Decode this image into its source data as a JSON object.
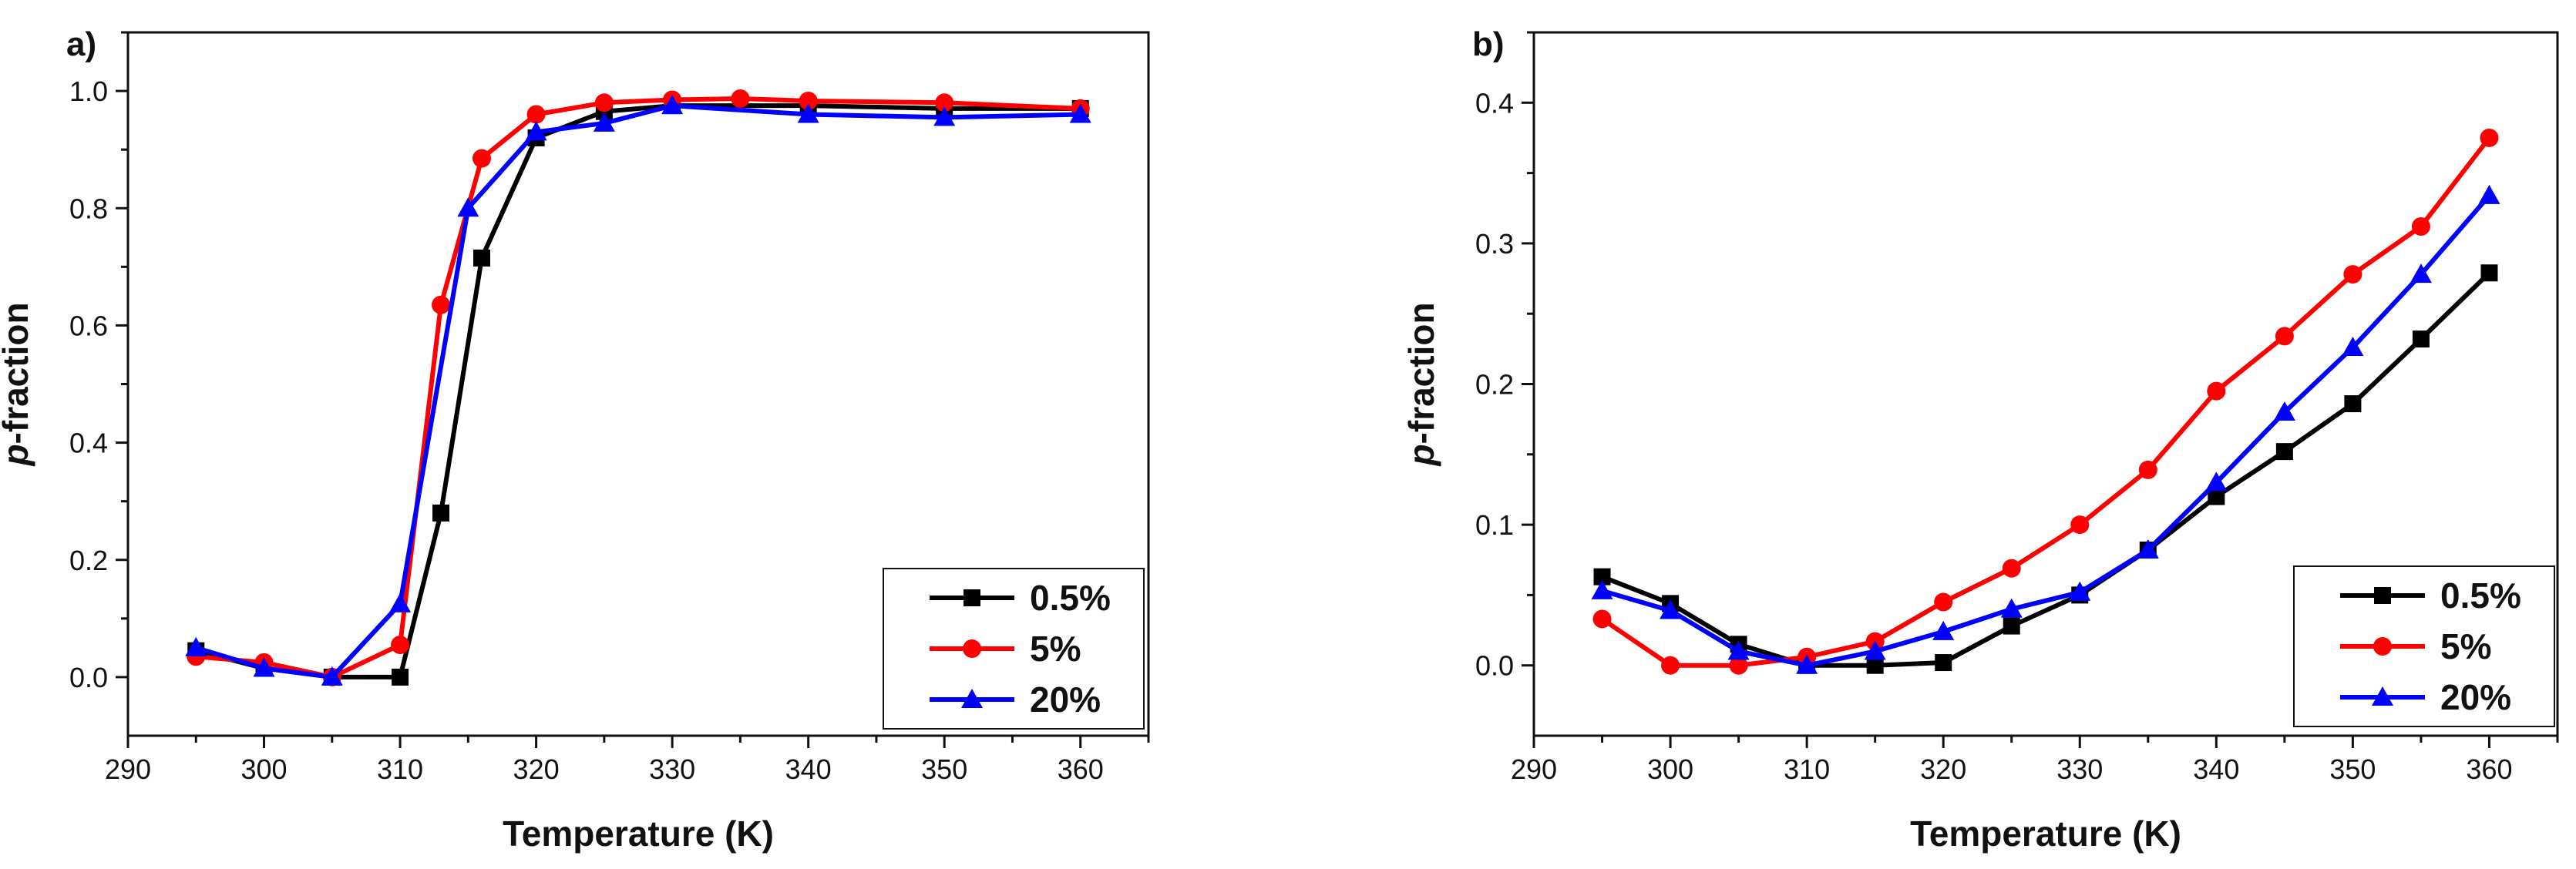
{
  "chart_data": [
    {
      "type": "line",
      "panel_label": "a)",
      "title": "",
      "xlabel": "Temperature (K)",
      "ylabel_italic": "p",
      "ylabel_rest": "-fraction",
      "xlim": [
        290,
        365
      ],
      "ylim": [
        -0.1,
        1.1
      ],
      "xticks": [
        290,
        300,
        310,
        320,
        330,
        340,
        350,
        360
      ],
      "xtick_labels": [
        "290",
        "300",
        "310",
        "320",
        "330",
        "340",
        "350",
        "360"
      ],
      "yticks": [
        0.0,
        0.2,
        0.4,
        0.6,
        0.8,
        1.0
      ],
      "ytick_labels": [
        "0.0",
        "0.2",
        "0.4",
        "0.6",
        "0.8",
        "1.0"
      ],
      "legend_position": "bottom-right",
      "series": [
        {
          "name": "0.5%",
          "color": "#000000",
          "marker": "square",
          "x": [
            295,
            300,
            305,
            310,
            313,
            316,
            320,
            325,
            330,
            340,
            350,
            360
          ],
          "y": [
            0.045,
            0.015,
            0.0,
            0.0,
            0.28,
            0.715,
            0.92,
            0.965,
            0.975,
            0.975,
            0.97,
            0.97
          ]
        },
        {
          "name": "5%",
          "color": "#ff0000",
          "marker": "circle",
          "x": [
            295,
            300,
            305,
            310,
            313,
            316,
            320,
            325,
            330,
            335,
            340,
            350,
            360
          ],
          "y": [
            0.035,
            0.025,
            0.0,
            0.055,
            0.635,
            0.885,
            0.96,
            0.98,
            0.985,
            0.987,
            0.983,
            0.98,
            0.97
          ]
        },
        {
          "name": "20%",
          "color": "#0000ff",
          "marker": "triangle",
          "x": [
            295,
            300,
            305,
            310,
            315,
            320,
            325,
            330,
            340,
            350,
            360
          ],
          "y": [
            0.05,
            0.015,
            0.0,
            0.125,
            0.8,
            0.93,
            0.945,
            0.975,
            0.96,
            0.955,
            0.96
          ]
        }
      ]
    },
    {
      "type": "line",
      "panel_label": "b)",
      "title": "",
      "xlabel": "Temperature (K)",
      "ylabel_italic": "p",
      "ylabel_rest": "-fraction",
      "xlim": [
        290,
        365
      ],
      "ylim": [
        -0.05,
        0.45
      ],
      "xticks": [
        290,
        300,
        310,
        320,
        330,
        340,
        350,
        360
      ],
      "xtick_labels": [
        "290",
        "300",
        "310",
        "320",
        "330",
        "340",
        "350",
        "360"
      ],
      "yticks": [
        0.0,
        0.1,
        0.2,
        0.3,
        0.4
      ],
      "ytick_labels": [
        "0.0",
        "0.1",
        "0.2",
        "0.3",
        "0.4"
      ],
      "legend_position": "bottom-right",
      "series": [
        {
          "name": "0.5%",
          "color": "#000000",
          "marker": "square",
          "x": [
            295,
            300,
            305,
            310,
            315,
            320,
            325,
            330,
            335,
            340,
            345,
            350,
            355,
            360
          ],
          "y": [
            0.063,
            0.044,
            0.015,
            0.0,
            0.0,
            0.002,
            0.028,
            0.05,
            0.082,
            0.12,
            0.152,
            0.186,
            0.232,
            0.279
          ]
        },
        {
          "name": "5%",
          "color": "#ff0000",
          "marker": "circle",
          "x": [
            295,
            300,
            305,
            310,
            315,
            320,
            325,
            330,
            335,
            340,
            345,
            350,
            355,
            360
          ],
          "y": [
            0.033,
            0.0,
            0.0,
            0.006,
            0.017,
            0.045,
            0.069,
            0.1,
            0.139,
            0.195,
            0.234,
            0.278,
            0.312,
            0.375
          ]
        },
        {
          "name": "20%",
          "color": "#0000ff",
          "marker": "triangle",
          "x": [
            295,
            300,
            305,
            310,
            315,
            320,
            325,
            330,
            335,
            340,
            345,
            350,
            355,
            360
          ],
          "y": [
            0.053,
            0.039,
            0.01,
            0.0,
            0.01,
            0.024,
            0.04,
            0.052,
            0.082,
            0.13,
            0.18,
            0.226,
            0.278,
            0.334
          ]
        }
      ]
    }
  ]
}
